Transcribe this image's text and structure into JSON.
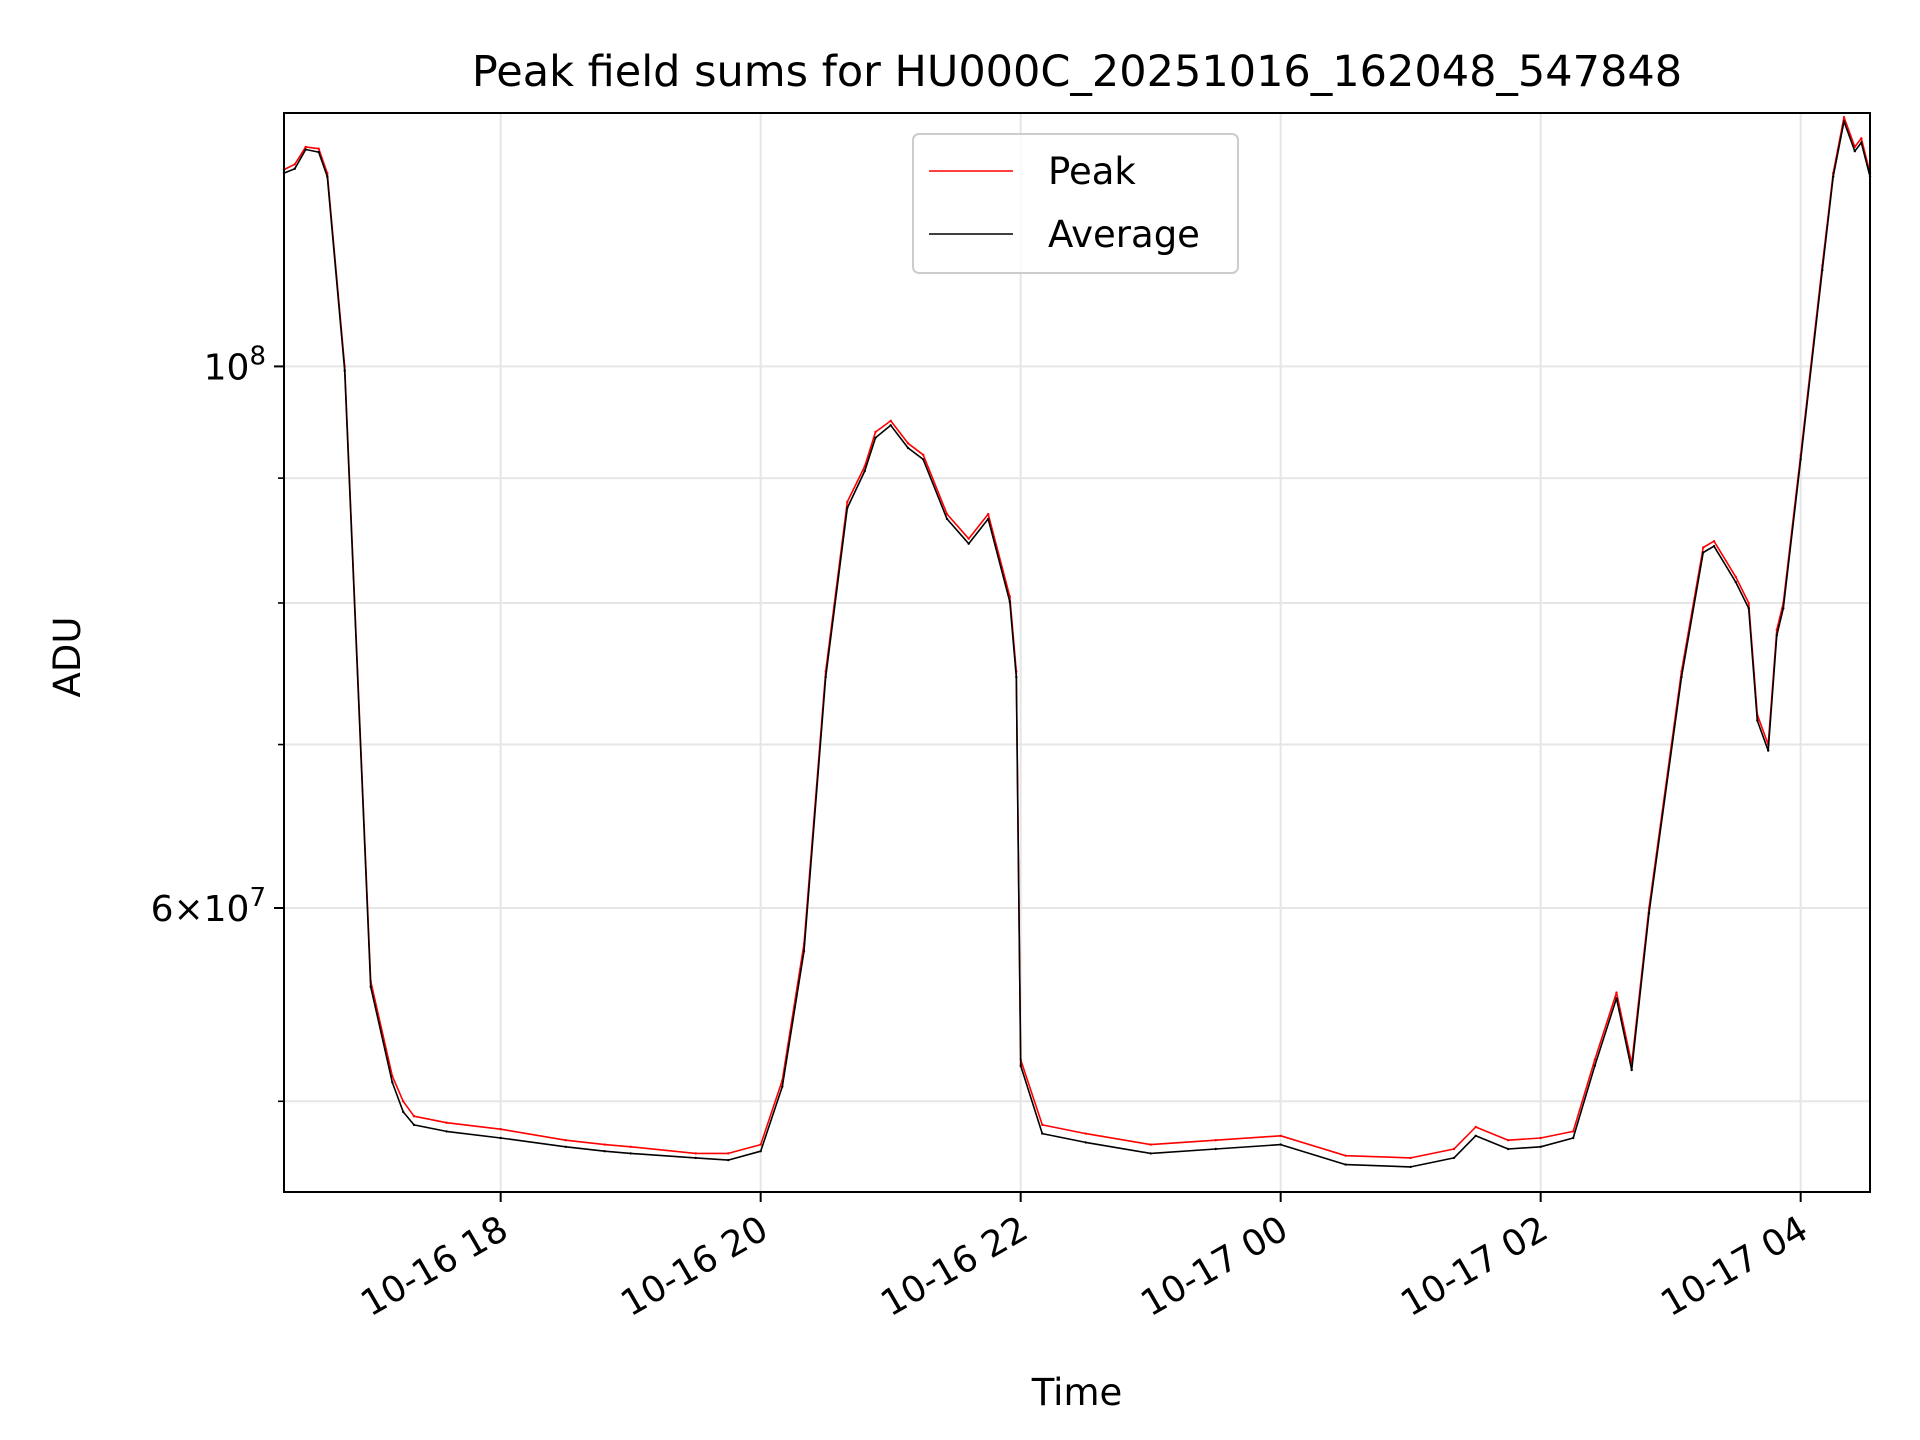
{
  "chart_data": {
    "type": "line",
    "title": "Peak field sums for HU000C_20251016_162048_547848",
    "xlabel": "Time",
    "ylabel": "ADU",
    "y_scale": "log",
    "grid": true,
    "legend_position": "top-center",
    "xlim": [
      "2025-10-16 16:20",
      "2025-10-17 04:32"
    ],
    "ylim": [
      45900000,
      127000000
    ],
    "x_ticks": [
      {
        "value": "2025-10-16 18:00",
        "label": "10-16 18"
      },
      {
        "value": "2025-10-16 20:00",
        "label": "10-16 20"
      },
      {
        "value": "2025-10-16 22:00",
        "label": "10-16 22"
      },
      {
        "value": "2025-10-17 00:00",
        "label": "10-17 00"
      },
      {
        "value": "2025-10-17 02:00",
        "label": "10-17 02"
      },
      {
        "value": "2025-10-17 04:00",
        "label": "10-17 04"
      }
    ],
    "y_major_ticks": [
      {
        "value": 100000000,
        "base": "10",
        "exp": "8"
      },
      {
        "value": 60000000,
        "mant": "6",
        "base": "10",
        "exp": "7"
      }
    ],
    "y_minor_ticks": [
      50000000,
      70000000,
      80000000,
      90000000
    ],
    "x": [
      "2025-10-16 16:20",
      "2025-10-16 16:25",
      "2025-10-16 16:30",
      "2025-10-16 16:36",
      "2025-10-16 16:40",
      "2025-10-16 16:48",
      "2025-10-16 17:00",
      "2025-10-16 17:10",
      "2025-10-16 17:15",
      "2025-10-16 17:20",
      "2025-10-16 17:35",
      "2025-10-16 18:00",
      "2025-10-16 18:30",
      "2025-10-16 18:48",
      "2025-10-16 19:00",
      "2025-10-16 19:30",
      "2025-10-16 19:45",
      "2025-10-16 20:00",
      "2025-10-16 20:10",
      "2025-10-16 20:20",
      "2025-10-16 20:30",
      "2025-10-16 20:40",
      "2025-10-16 20:48",
      "2025-10-16 20:53",
      "2025-10-16 21:00",
      "2025-10-16 21:08",
      "2025-10-16 21:15",
      "2025-10-16 21:26",
      "2025-10-16 21:36",
      "2025-10-16 21:45",
      "2025-10-16 21:55",
      "2025-10-16 21:58",
      "2025-10-16 22:00",
      "2025-10-16 22:10",
      "2025-10-16 22:30",
      "2025-10-16 23:00",
      "2025-10-16 23:30",
      "2025-10-17 00:00",
      "2025-10-17 00:30",
      "2025-10-17 01:00",
      "2025-10-17 01:20",
      "2025-10-17 01:30",
      "2025-10-17 01:45",
      "2025-10-17 02:00",
      "2025-10-17 02:15",
      "2025-10-17 02:25",
      "2025-10-17 02:35",
      "2025-10-17 02:42",
      "2025-10-17 02:50",
      "2025-10-17 03:05",
      "2025-10-17 03:15",
      "2025-10-17 03:20",
      "2025-10-17 03:30",
      "2025-10-17 03:36",
      "2025-10-17 03:40",
      "2025-10-17 03:45",
      "2025-10-17 03:49",
      "2025-10-17 03:52",
      "2025-10-17 04:00",
      "2025-10-17 04:10",
      "2025-10-17 04:15",
      "2025-10-17 04:20",
      "2025-10-17 04:25",
      "2025-10-17 04:28",
      "2025-10-17 04:32"
    ],
    "series": [
      {
        "name": "Peak",
        "color": "#ff0000",
        "values": [
          120400000,
          121000000,
          123000000,
          122800000,
          120000000,
          100000000,
          56000000,
          51200000,
          50000000,
          49300000,
          49000000,
          48700000,
          48200000,
          48000000,
          47900000,
          47600000,
          47600000,
          48000000,
          51000000,
          58000000,
          75000000,
          88000000,
          91000000,
          94000000,
          95000000,
          93000000,
          92000000,
          87000000,
          85000000,
          87000000,
          80500000,
          75000000,
          52000000,
          48900000,
          48500000,
          48000000,
          48200000,
          48400000,
          47500000,
          47400000,
          47800000,
          48800000,
          48200000,
          48300000,
          48600000,
          52000000,
          55400000,
          51800000,
          60000000,
          75000000,
          84300000,
          84800000,
          82000000,
          80000000,
          72000000,
          70000000,
          78000000,
          80000000,
          92000000,
          110000000,
          120000000,
          126500000,
          123000000,
          124000000,
          120000000
        ]
      },
      {
        "name": "Average",
        "color": "#000000",
        "values": [
          120000000,
          120500000,
          122700000,
          122400000,
          119600000,
          99600000,
          55700000,
          50900000,
          49500000,
          48900000,
          48600000,
          48300000,
          47900000,
          47700000,
          47600000,
          47400000,
          47300000,
          47700000,
          50700000,
          57600000,
          74600000,
          87500000,
          90600000,
          93500000,
          94600000,
          92600000,
          91600000,
          86600000,
          84600000,
          86600000,
          80100000,
          74600000,
          51700000,
          48500000,
          48100000,
          47600000,
          47800000,
          48000000,
          47100000,
          47000000,
          47400000,
          48400000,
          47800000,
          47900000,
          48300000,
          51700000,
          55100000,
          51500000,
          59700000,
          74600000,
          83900000,
          84400000,
          81600000,
          79600000,
          71600000,
          69600000,
          77600000,
          79600000,
          91600000,
          109500000,
          119600000,
          126000000,
          122500000,
          123500000,
          119600000
        ]
      }
    ]
  }
}
